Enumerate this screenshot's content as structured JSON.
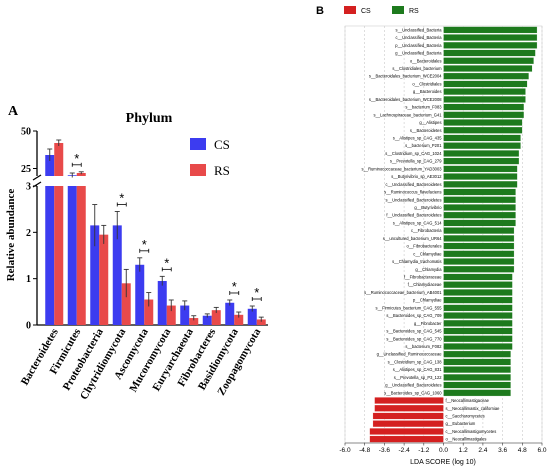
{
  "chart_data": [
    {
      "panel_label": "A",
      "type": "bar",
      "title": "Phylum",
      "ylabel": "Relative abundance",
      "axis_break": {
        "lower": [
          0,
          3
        ],
        "upper": [
          20,
          50
        ]
      },
      "lower_ticks": [
        "0",
        "1",
        "2",
        "3"
      ],
      "upper_ticks": [
        "25",
        "50"
      ],
      "categories": [
        "Bacteroidetes",
        "Firmicutes",
        "Proteobacteria",
        "Chytridiomycota",
        "Ascomycota",
        "Mucoromycota",
        "Euryarchaeota",
        "Fibrobacteres",
        "Basidiomycota",
        "Zoopagomycota"
      ],
      "series": [
        {
          "name": "CS",
          "color": "#3c3cf0",
          "values": [
            34,
            20.5,
            2.15,
            2.15,
            1.3,
            0.95,
            0.42,
            0.2,
            0.48,
            0.35
          ],
          "errors": [
            4,
            1.5,
            0.45,
            0.3,
            0.15,
            0.1,
            0.1,
            0.04,
            0.06,
            0.06
          ]
        },
        {
          "name": "RS",
          "color": "#e84a4a",
          "values": [
            42,
            22,
            1.95,
            0.9,
            0.55,
            0.42,
            0.15,
            0.32,
            0.22,
            0.12
          ],
          "errors": [
            2,
            0.8,
            0.2,
            0.3,
            0.15,
            0.12,
            0.05,
            0.06,
            0.06,
            0.05
          ]
        }
      ],
      "significant": [
        1,
        3,
        4,
        5,
        8,
        9
      ],
      "significance_marker": "*",
      "legend_placement": "right"
    },
    {
      "panel_label": "B",
      "type": "bar",
      "orientation": "horizontal",
      "xlabel": "LDA SCORE (log 10)",
      "xlim": [
        -6.0,
        6.0
      ],
      "xticks": [
        "-6.0",
        "-4.8",
        "-3.6",
        "-2.4",
        "-1.2",
        "0.0",
        "1.2",
        "2.4",
        "3.6",
        "4.8",
        "6.0"
      ],
      "legend": [
        {
          "name": "CS",
          "color": "#d42020"
        },
        {
          "name": "RS",
          "color": "#1d7a1d"
        }
      ],
      "legend_placement": "top-left",
      "bars": [
        {
          "label": "s__Unclassified_Bacteria",
          "value": 5.7,
          "group": "RS"
        },
        {
          "label": "c__Unclassified_Bacteria",
          "value": 5.7,
          "group": "RS"
        },
        {
          "label": "p__Unclassified_Bacteria",
          "value": 5.7,
          "group": "RS"
        },
        {
          "label": "g__Unclassified_Bacteria",
          "value": 5.6,
          "group": "RS"
        },
        {
          "label": "o__Bacteroidales",
          "value": 5.5,
          "group": "RS"
        },
        {
          "label": "s__Clostridiales_bacterium",
          "value": 5.4,
          "group": "RS"
        },
        {
          "label": "s__Bacteroidales_bacterium_WCE2004",
          "value": 5.2,
          "group": "RS"
        },
        {
          "label": "o__Clostridiales",
          "value": 5.1,
          "group": "RS"
        },
        {
          "label": "g__Bacteroides",
          "value": 5.0,
          "group": "RS"
        },
        {
          "label": "s__Bacteroidales_bacterium_WCE2008",
          "value": 5.0,
          "group": "RS"
        },
        {
          "label": "s__bacterium_F083",
          "value": 4.9,
          "group": "RS"
        },
        {
          "label": "s__Lachnospiraceae_bacterium_G41",
          "value": 4.9,
          "group": "RS"
        },
        {
          "label": "g__Alistipes",
          "value": 4.8,
          "group": "RS"
        },
        {
          "label": "s__Bacteroidetes",
          "value": 4.8,
          "group": "RS"
        },
        {
          "label": "s__Alistipes_sp_CAG_435",
          "value": 4.7,
          "group": "RS"
        },
        {
          "label": "s__bacterium_P201",
          "value": 4.7,
          "group": "RS"
        },
        {
          "label": "s__Clostridium_sp_CAG_1024",
          "value": 4.6,
          "group": "RS"
        },
        {
          "label": "s__Prevotella_sp_CAG_279",
          "value": 4.6,
          "group": "RS"
        },
        {
          "label": "s__Ruminococcaceae_bacterium_YAD3003",
          "value": 4.5,
          "group": "RS"
        },
        {
          "label": "s__Butyrivibrio_sp_AE3012",
          "value": 4.5,
          "group": "RS"
        },
        {
          "label": "c__Unclassified_Bacteroidetes",
          "value": 4.5,
          "group": "RS"
        },
        {
          "label": "s__Ruminococcus_flavefaciens",
          "value": 4.4,
          "group": "RS"
        },
        {
          "label": "s__Unclassified_Bacteroidetes",
          "value": 4.4,
          "group": "RS"
        },
        {
          "label": "g__Butyrivibrio",
          "value": 4.4,
          "group": "RS"
        },
        {
          "label": "f__Unclassified_Bacteroidetes",
          "value": 4.4,
          "group": "RS"
        },
        {
          "label": "s__Alistipes_sp_CAG_514",
          "value": 4.4,
          "group": "RS"
        },
        {
          "label": "c__Fibrobacteria",
          "value": 4.3,
          "group": "RS"
        },
        {
          "label": "s__uncultured_bacterium_UR64",
          "value": 4.3,
          "group": "RS"
        },
        {
          "label": "o__Fibrobacterales",
          "value": 4.3,
          "group": "RS"
        },
        {
          "label": "c__Chlamydiae",
          "value": 4.3,
          "group": "RS"
        },
        {
          "label": "s__Chlamydia_trachomatis",
          "value": 4.3,
          "group": "RS"
        },
        {
          "label": "g__Chlamydia",
          "value": 4.3,
          "group": "RS"
        },
        {
          "label": "f__Fibrobacteraceae",
          "value": 4.2,
          "group": "RS"
        },
        {
          "label": "f__Chlamydiaceae",
          "value": 4.2,
          "group": "RS"
        },
        {
          "label": "s__Ruminococcaceae_bacterium_AB4001",
          "value": 4.2,
          "group": "RS"
        },
        {
          "label": "p__Chlamydiae",
          "value": 4.2,
          "group": "RS"
        },
        {
          "label": "s__Firmicutes_bacterium_CAG_555",
          "value": 4.2,
          "group": "RS"
        },
        {
          "label": "s__Bacteroides_sp_CAG_709",
          "value": 4.2,
          "group": "RS"
        },
        {
          "label": "g__Fibrobacter",
          "value": 4.2,
          "group": "RS"
        },
        {
          "label": "s__Bacteroides_sp_CAG_545",
          "value": 4.2,
          "group": "RS"
        },
        {
          "label": "s__Bacteroides_sp_CAG_770",
          "value": 4.2,
          "group": "RS"
        },
        {
          "label": "s__bacterium_F082",
          "value": 4.2,
          "group": "RS"
        },
        {
          "label": "g__Unclassified_Ruminococcaceae",
          "value": 4.1,
          "group": "RS"
        },
        {
          "label": "s__Clostridium_sp_CAG_138",
          "value": 4.1,
          "group": "RS"
        },
        {
          "label": "s__Alistipes_sp_CAG_831",
          "value": 4.1,
          "group": "RS"
        },
        {
          "label": "s__Prevotella_sp_P3_122",
          "value": 4.1,
          "group": "RS"
        },
        {
          "label": "g__Unclassified_Bacteroidetes",
          "value": 4.1,
          "group": "RS"
        },
        {
          "label": "s__Bacteroides_sp_CAG_1060",
          "value": 4.1,
          "group": "RS"
        },
        {
          "label": "f__Neocallimastigaceae",
          "value": -4.2,
          "group": "CS"
        },
        {
          "label": "s__Neocallimastix_californiae",
          "value": -4.2,
          "group": "CS"
        },
        {
          "label": "c__Saccharomycetes",
          "value": -4.3,
          "group": "CS"
        },
        {
          "label": "g__Eubacterium",
          "value": -4.3,
          "group": "CS"
        },
        {
          "label": "c__Neocallimastigomycetes",
          "value": -4.5,
          "group": "CS"
        },
        {
          "label": "o__Neocallimastigales",
          "value": -4.5,
          "group": "CS"
        }
      ]
    }
  ]
}
